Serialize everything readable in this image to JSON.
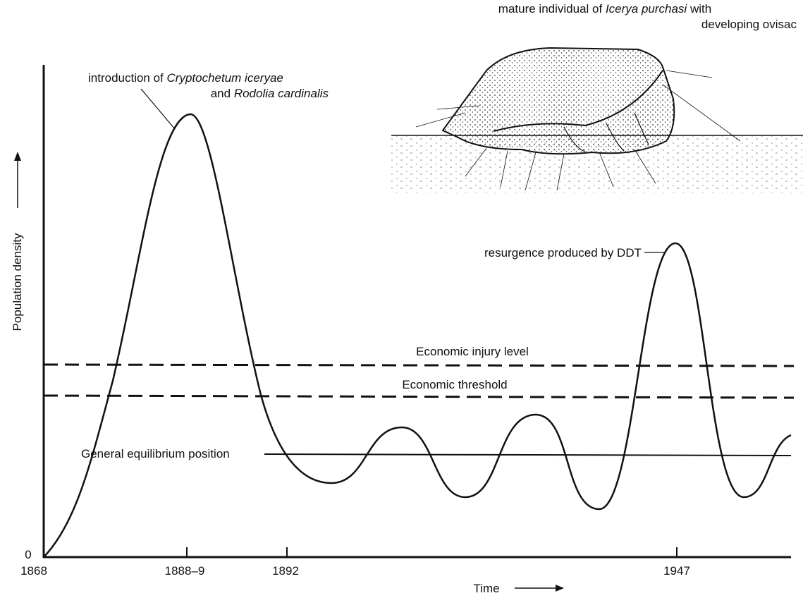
{
  "illustration": {
    "caption_parts": [
      "mature individual of ",
      "Icerya purchasi",
      " with"
    ],
    "caption_line2": "developing ovisac"
  },
  "annotations": {
    "introduction_line1": [
      "introduction of ",
      "Cryptochetum iceryae"
    ],
    "introduction_line2": [
      "and ",
      "Rodolia cardinalis"
    ],
    "resurgence": "resurgence produced by DDT"
  },
  "levels": {
    "injury": "Economic injury level",
    "threshold": "Economic threshold",
    "equilibrium": "General equilibrium position"
  },
  "axes": {
    "y_label": "Population density",
    "x_label": "Time",
    "origin": "0",
    "x_ticks": [
      "1868",
      "1888–9",
      "1892",
      "1947"
    ]
  }
}
